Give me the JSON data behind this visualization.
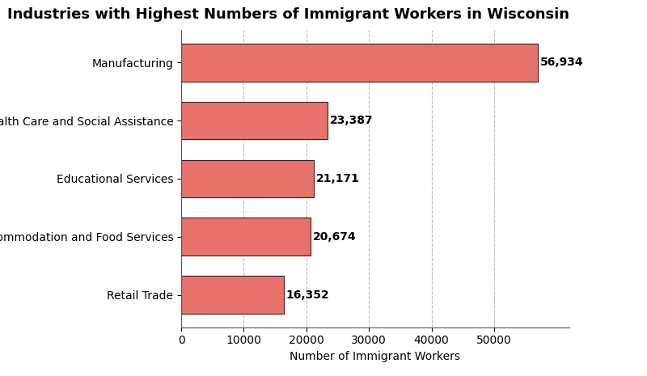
{
  "title": "Industries with Highest Numbers of Immigrant Workers in Wisconsin",
  "categories": [
    "Retail Trade",
    "Accommodation and Food Services",
    "Educational Services",
    "Health Care and Social Assistance",
    "Manufacturing"
  ],
  "values": [
    16352,
    20674,
    21171,
    23387,
    56934
  ],
  "bar_color": "#E8736C",
  "bar_edgecolor": "#3A2020",
  "xlabel": "Number of Immigrant Workers",
  "xlim": [
    0,
    62000
  ],
  "xticks": [
    0,
    10000,
    20000,
    30000,
    40000,
    50000
  ],
  "title_fontsize": 13,
  "label_fontsize": 10,
  "tick_fontsize": 10,
  "value_fontsize": 10,
  "background_color": "#FFFFFF",
  "grid_color": "#BBBBBB",
  "bar_height": 0.65
}
